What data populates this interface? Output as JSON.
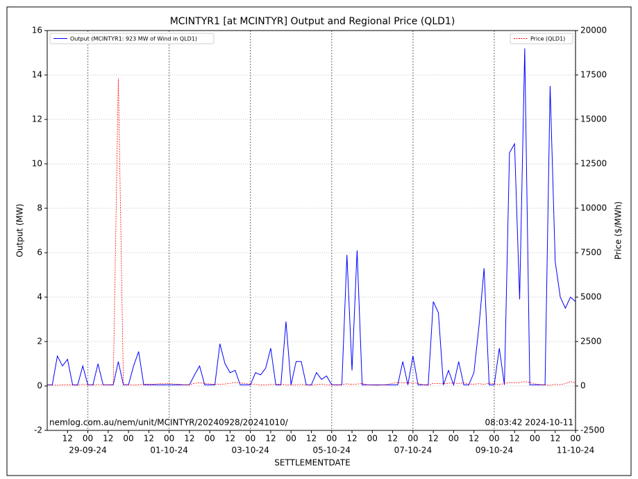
{
  "chart_data": {
    "type": "line",
    "title": "MCINTYR1 [at MCINTYR] Output and Regional Price (QLD1)",
    "x_label": "SETTLEMENTDATE",
    "y_label": "Output (MW)",
    "y2_label": "Price ($/MWh)",
    "source": "nemlog.com.au/nem/unit/MCINTYR/20240928/20241010/",
    "timestamp": "08:03:42 2024-10-11",
    "xlim": [
      "2024-09-28 00:00",
      "2024-10-11 00:00"
    ],
    "ylim": [
      -2,
      16
    ],
    "yticks": [
      -2,
      0,
      2,
      4,
      6,
      8,
      10,
      12,
      14,
      16
    ],
    "y2lim": [
      -2500,
      20000
    ],
    "y2ticks": [
      -2500,
      0,
      2500,
      5000,
      7500,
      10000,
      12500,
      15000,
      17500,
      20000
    ],
    "grid": true,
    "xticks": [
      {
        "value": "2024-09-28 12:00",
        "label": "12"
      },
      {
        "value": "2024-09-29 00:00",
        "label": "00"
      },
      {
        "value": "2024-09-29 12:00",
        "label": "12"
      },
      {
        "value": "2024-09-30 00:00",
        "label": "00"
      },
      {
        "value": "2024-09-30 12:00",
        "label": "12"
      },
      {
        "value": "2024-10-01 00:00",
        "label": "00"
      },
      {
        "value": "2024-10-01 12:00",
        "label": "12"
      },
      {
        "value": "2024-10-02 00:00",
        "label": "00"
      },
      {
        "value": "2024-10-02 12:00",
        "label": "12"
      },
      {
        "value": "2024-10-03 00:00",
        "label": "00"
      },
      {
        "value": "2024-10-03 12:00",
        "label": "12"
      },
      {
        "value": "2024-10-04 00:00",
        "label": "00"
      },
      {
        "value": "2024-10-04 12:00",
        "label": "12"
      },
      {
        "value": "2024-10-05 00:00",
        "label": "00"
      },
      {
        "value": "2024-10-05 12:00",
        "label": "12"
      },
      {
        "value": "2024-10-06 00:00",
        "label": "00"
      },
      {
        "value": "2024-10-06 12:00",
        "label": "12"
      },
      {
        "value": "2024-10-07 00:00",
        "label": "00"
      },
      {
        "value": "2024-10-07 12:00",
        "label": "12"
      },
      {
        "value": "2024-10-08 00:00",
        "label": "00"
      },
      {
        "value": "2024-10-08 12:00",
        "label": "12"
      },
      {
        "value": "2024-10-09 00:00",
        "label": "00"
      },
      {
        "value": "2024-10-09 12:00",
        "label": "12"
      },
      {
        "value": "2024-10-10 00:00",
        "label": "00"
      },
      {
        "value": "2024-10-10 12:00",
        "label": "12"
      },
      {
        "value": "2024-10-11 00:00",
        "label": "00"
      }
    ],
    "xdate_ticks": [
      {
        "value": "2024-09-29 00:00",
        "label": "29-09-24"
      },
      {
        "value": "2024-10-01 00:00",
        "label": "01-10-24"
      },
      {
        "value": "2024-10-03 00:00",
        "label": "03-10-24"
      },
      {
        "value": "2024-10-05 00:00",
        "label": "05-10-24"
      },
      {
        "value": "2024-10-07 00:00",
        "label": "07-10-24"
      },
      {
        "value": "2024-10-09 00:00",
        "label": "09-10-24"
      },
      {
        "value": "2024-10-11 00:00",
        "label": "11-10-24"
      }
    ],
    "x": [
      "2024-09-28 00:00",
      "2024-09-28 03:00",
      "2024-09-28 06:00",
      "2024-09-28 09:00",
      "2024-09-28 12:00",
      "2024-09-28 15:00",
      "2024-09-28 18:00",
      "2024-09-28 21:00",
      "2024-09-29 00:00",
      "2024-09-29 03:00",
      "2024-09-29 06:00",
      "2024-09-29 09:00",
      "2024-09-29 12:00",
      "2024-09-29 15:00",
      "2024-09-29 18:00",
      "2024-09-29 21:00",
      "2024-09-30 00:00",
      "2024-09-30 03:00",
      "2024-09-30 06:00",
      "2024-09-30 09:00",
      "2024-09-30 12:00",
      "2024-09-30 15:00",
      "2024-09-30 18:00",
      "2024-09-30 21:00",
      "2024-10-01 00:00",
      "2024-10-01 03:00",
      "2024-10-01 06:00",
      "2024-10-01 09:00",
      "2024-10-01 12:00",
      "2024-10-01 15:00",
      "2024-10-01 18:00",
      "2024-10-01 21:00",
      "2024-10-02 00:00",
      "2024-10-02 03:00",
      "2024-10-02 06:00",
      "2024-10-02 09:00",
      "2024-10-02 12:00",
      "2024-10-02 15:00",
      "2024-10-02 18:00",
      "2024-10-02 21:00",
      "2024-10-03 00:00",
      "2024-10-03 03:00",
      "2024-10-03 06:00",
      "2024-10-03 09:00",
      "2024-10-03 12:00",
      "2024-10-03 15:00",
      "2024-10-03 18:00",
      "2024-10-03 21:00",
      "2024-10-04 00:00",
      "2024-10-04 03:00",
      "2024-10-04 06:00",
      "2024-10-04 09:00",
      "2024-10-04 12:00",
      "2024-10-04 15:00",
      "2024-10-04 18:00",
      "2024-10-04 21:00",
      "2024-10-05 00:00",
      "2024-10-05 03:00",
      "2024-10-05 06:00",
      "2024-10-05 09:00",
      "2024-10-05 12:00",
      "2024-10-05 15:00",
      "2024-10-05 18:00",
      "2024-10-05 21:00",
      "2024-10-06 00:00",
      "2024-10-06 03:00",
      "2024-10-06 06:00",
      "2024-10-06 09:00",
      "2024-10-06 12:00",
      "2024-10-06 15:00",
      "2024-10-06 18:00",
      "2024-10-06 21:00",
      "2024-10-07 00:00",
      "2024-10-07 03:00",
      "2024-10-07 06:00",
      "2024-10-07 09:00",
      "2024-10-07 12:00",
      "2024-10-07 15:00",
      "2024-10-07 18:00",
      "2024-10-07 21:00",
      "2024-10-08 00:00",
      "2024-10-08 03:00",
      "2024-10-08 06:00",
      "2024-10-08 09:00",
      "2024-10-08 12:00",
      "2024-10-08 15:00",
      "2024-10-08 18:00",
      "2024-10-08 21:00",
      "2024-10-09 00:00",
      "2024-10-09 03:00",
      "2024-10-09 06:00",
      "2024-10-09 09:00",
      "2024-10-09 12:00",
      "2024-10-09 15:00",
      "2024-10-09 18:00",
      "2024-10-09 21:00",
      "2024-10-10 00:00",
      "2024-10-10 03:00",
      "2024-10-10 06:00",
      "2024-10-10 09:00",
      "2024-10-10 12:00",
      "2024-10-10 15:00",
      "2024-10-10 18:00",
      "2024-10-10 21:00",
      "2024-10-11 00:00"
    ],
    "series": [
      {
        "name": "Output (MCINTYR1: 923 MW of Wind in QLD1)",
        "color": "#0000ff",
        "axis": "y",
        "legend": "upper left",
        "values": [
          0.05,
          0.05,
          1.35,
          0.9,
          1.2,
          0.05,
          0.05,
          0.9,
          0.05,
          0.05,
          1.0,
          0.05,
          0.05,
          0.05,
          1.1,
          0.05,
          0.05,
          0.9,
          1.55,
          0.05,
          0.05,
          0.05,
          0.05,
          0.05,
          0.05,
          0.05,
          0.05,
          0.05,
          0.05,
          0.5,
          0.9,
          0.05,
          0.05,
          0.05,
          1.9,
          1.0,
          0.6,
          0.7,
          0.05,
          0.05,
          0.05,
          0.6,
          0.5,
          0.8,
          1.7,
          0.05,
          0.05,
          2.9,
          0.05,
          1.1,
          1.1,
          0.05,
          0.05,
          0.6,
          0.3,
          0.45,
          0.05,
          0.05,
          0.05,
          5.9,
          0.7,
          6.1,
          0.05,
          0.05,
          0.05,
          0.05,
          0.05,
          0.05,
          0.05,
          0.05,
          1.1,
          0.05,
          1.35,
          0.05,
          0.05,
          0.05,
          3.8,
          3.3,
          0.05,
          0.7,
          0.05,
          1.1,
          0.05,
          0.05,
          0.6,
          2.7,
          5.3,
          0.05,
          0.05,
          1.7,
          0.05,
          10.5,
          10.9,
          3.9,
          15.2,
          0.05,
          0.05,
          0.05,
          0.05,
          13.5,
          5.6,
          4.0,
          3.5,
          4.0,
          3.8
        ]
      },
      {
        "name": "Price (QLD1)",
        "color": "#ff0000",
        "axis": "y2",
        "dashed": true,
        "legend": "upper right",
        "values": [
          50,
          45,
          40,
          60,
          70,
          55,
          40,
          90,
          60,
          50,
          80,
          70,
          60,
          90,
          17300,
          80,
          60,
          50,
          70,
          90,
          110,
          100,
          130,
          120,
          140,
          110,
          100,
          60,
          70,
          150,
          180,
          140,
          120,
          90,
          100,
          110,
          150,
          200,
          180,
          130,
          110,
          90,
          60,
          70,
          80,
          90,
          100,
          60,
          50,
          70,
          90,
          60,
          40,
          80,
          100,
          70,
          60,
          50,
          80,
          120,
          90,
          110,
          140,
          60,
          50,
          40,
          60,
          90,
          150,
          200,
          170,
          180,
          160,
          150,
          60,
          40,
          150,
          130,
          120,
          160,
          170,
          140,
          180,
          110,
          100,
          130,
          90,
          160,
          120,
          80,
          140,
          200,
          180,
          190,
          250,
          200,
          120,
          80,
          60,
          40,
          90,
          80,
          130,
          250,
          180
        ]
      }
    ]
  }
}
